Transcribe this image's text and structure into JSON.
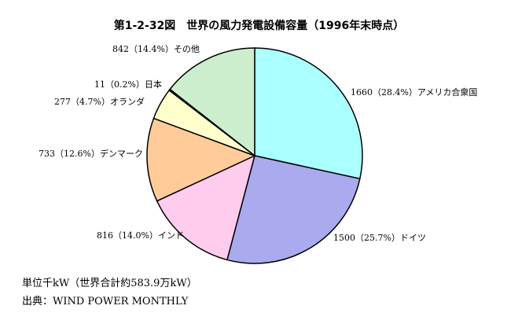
{
  "chart_data": {
    "type": "pie",
    "title": "第1-2-32図　世界の風力発電設備容量（1996年末時点）",
    "slices": [
      {
        "label": "アメリカ合衆国",
        "value": 1660,
        "percent": 28.4,
        "color": "#aaffff",
        "display": "1660（28.4%）アメリカ合衆国"
      },
      {
        "label": "ドイツ",
        "value": 1500,
        "percent": 25.7,
        "color": "#aaaaee",
        "display": "1500（25.7%）ドイツ"
      },
      {
        "label": "インド",
        "value": 816,
        "percent": 14.0,
        "color": "#ffccee",
        "display": "816（14.0%）インド"
      },
      {
        "label": "デンマーク",
        "value": 733,
        "percent": 12.6,
        "color": "#ffcc99",
        "display": "733（12.6%）デンマーク"
      },
      {
        "label": "オランダ",
        "value": 277,
        "percent": 4.7,
        "color": "#ffffcc",
        "display": "277（4.7%）オランダ"
      },
      {
        "label": "日本",
        "value": 11,
        "percent": 0.2,
        "color": "#000000",
        "display": "11（0.2%）日本"
      },
      {
        "label": "その他",
        "value": 842,
        "percent": 14.4,
        "color": "#cceecc",
        "display": "842（14.4%）その他"
      }
    ]
  },
  "notes": {
    "unit": "単位千kW（世界合計約583.9万kW）",
    "source": "出典：WIND POWER MONTHLY"
  }
}
